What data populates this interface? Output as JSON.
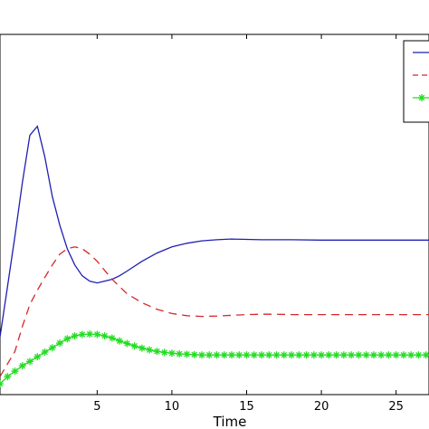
{
  "chart_data": {
    "type": "line",
    "title": "",
    "xlabel": "Time",
    "ylabel": "",
    "xlim": [
      -1.5,
      27.2
    ],
    "ylim": [
      0,
      1
    ],
    "grid": false,
    "legend": {
      "position": "top-right",
      "entries": 3
    },
    "x_ticks": [
      5,
      10,
      15,
      20,
      25
    ],
    "x_tick_labels": [
      "5",
      "10",
      "15",
      "20",
      "25"
    ],
    "series": [
      {
        "color": "#1f1fb4",
        "style": "solid",
        "marker": "none",
        "x": [
          -1.5,
          -1.0,
          -0.5,
          0.0,
          0.5,
          1.0,
          1.5,
          2.0,
          2.5,
          3.0,
          3.5,
          4.0,
          4.5,
          5.0,
          5.5,
          6.0,
          6.5,
          7.0,
          8.0,
          9.0,
          10.0,
          11.0,
          12.0,
          13.0,
          14.0,
          15.0,
          16.0,
          17.0,
          18.0,
          20.0,
          22.0,
          24.0,
          27.2
        ],
        "y": [
          0.16,
          0.3,
          0.44,
          0.59,
          0.72,
          0.745,
          0.66,
          0.55,
          0.47,
          0.405,
          0.36,
          0.33,
          0.315,
          0.31,
          0.315,
          0.32,
          0.33,
          0.343,
          0.37,
          0.393,
          0.41,
          0.42,
          0.427,
          0.43,
          0.432,
          0.431,
          0.43,
          0.43,
          0.43,
          0.429,
          0.429,
          0.429,
          0.429
        ]
      },
      {
        "color": "#d62728",
        "style": "dashed",
        "marker": "none",
        "x": [
          -1.5,
          -0.5,
          0.0,
          0.5,
          1.0,
          1.5,
          2.0,
          2.5,
          3.0,
          3.5,
          4.0,
          4.5,
          5.0,
          5.5,
          6.0,
          6.5,
          7.0,
          8.0,
          9.0,
          10.0,
          11.0,
          12.0,
          13.0,
          14.0,
          15.0,
          16.0,
          17.0,
          18.0,
          20.0,
          22.0,
          24.0,
          27.2
        ],
        "y": [
          0.05,
          0.12,
          0.19,
          0.25,
          0.29,
          0.325,
          0.36,
          0.39,
          0.405,
          0.41,
          0.405,
          0.39,
          0.37,
          0.345,
          0.32,
          0.3,
          0.28,
          0.255,
          0.237,
          0.225,
          0.219,
          0.217,
          0.218,
          0.22,
          0.222,
          0.223,
          0.223,
          0.222,
          0.222,
          0.222,
          0.222,
          0.222
        ]
      },
      {
        "color": "#22dd22",
        "style": "solid",
        "marker": "asterisk",
        "x": [
          -1.5,
          -1.0,
          -0.5,
          0.0,
          0.5,
          1.0,
          1.5,
          2.0,
          2.5,
          3.0,
          3.5,
          4.0,
          4.5,
          5.0,
          5.5,
          6.0,
          6.5,
          7.0,
          7.5,
          8.0,
          8.5,
          9.0,
          9.5,
          10.0,
          10.5,
          11.0,
          11.5,
          12.0,
          12.5,
          13.0,
          13.5,
          14.0,
          14.5,
          15.0,
          15.5,
          16.0,
          16.5,
          17.0,
          17.5,
          18.0,
          18.5,
          19.0,
          19.5,
          20.0,
          20.5,
          21.0,
          21.5,
          22.0,
          22.5,
          23.0,
          23.5,
          24.0,
          24.5,
          25.0,
          25.5,
          26.0,
          26.5,
          27.0
        ],
        "y": [
          0.03,
          0.05,
          0.065,
          0.08,
          0.092,
          0.105,
          0.118,
          0.13,
          0.143,
          0.155,
          0.163,
          0.167,
          0.168,
          0.167,
          0.163,
          0.157,
          0.149,
          0.142,
          0.135,
          0.129,
          0.124,
          0.12,
          0.117,
          0.115,
          0.113,
          0.112,
          0.111,
          0.11,
          0.11,
          0.11,
          0.11,
          0.11,
          0.11,
          0.11,
          0.11,
          0.11,
          0.11,
          0.11,
          0.11,
          0.11,
          0.11,
          0.11,
          0.11,
          0.11,
          0.11,
          0.11,
          0.11,
          0.11,
          0.11,
          0.11,
          0.11,
          0.11,
          0.11,
          0.11,
          0.11,
          0.11,
          0.11,
          0.11
        ]
      }
    ]
  }
}
